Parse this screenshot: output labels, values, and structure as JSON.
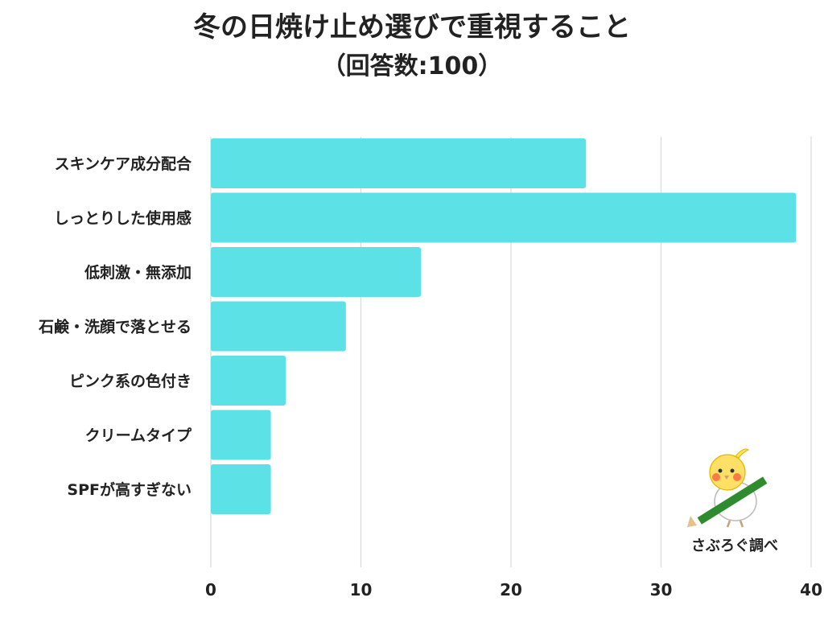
{
  "title": "冬の日焼け止め選びで重視すること",
  "subtitle": "（回答数:100）",
  "credit": "さぶろぐ調べ",
  "colors": {
    "bar": "#5ce1e6",
    "grid": "#d9d9d9",
    "text": "#222222"
  },
  "chart_data": {
    "type": "bar",
    "orientation": "horizontal",
    "categories": [
      "スキンケア成分配合",
      "しっとりした使用感",
      "低刺激・無添加",
      "石鹸・洗顔で落とせる",
      "ピンク系の色付き",
      "クリームタイプ",
      "SPFが高すぎない"
    ],
    "values": [
      25,
      39,
      14,
      9,
      5,
      4,
      4
    ],
    "xlim": [
      0,
      40
    ],
    "xticks": [
      0,
      10,
      20,
      30,
      40
    ],
    "grid": true
  }
}
